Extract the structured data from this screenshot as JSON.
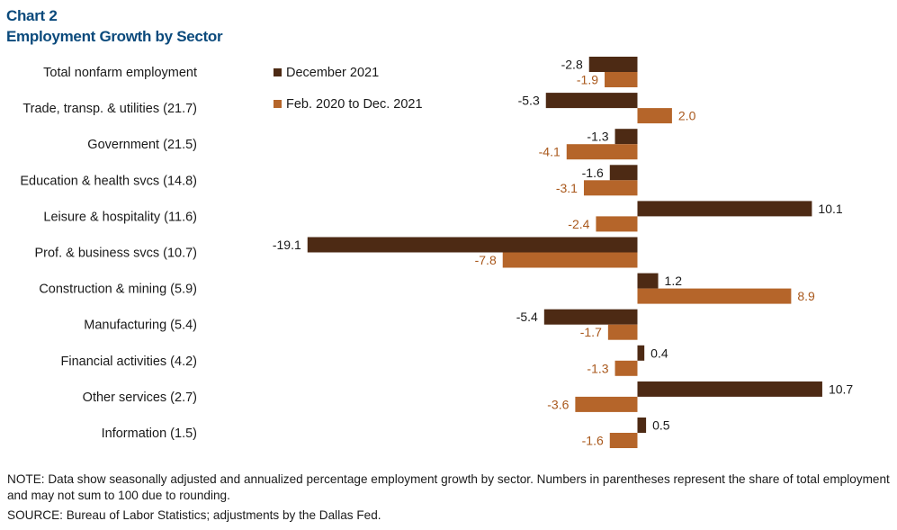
{
  "chart_label": "Chart 2",
  "title": "Employment Growth by Sector",
  "chart_data": {
    "type": "bar",
    "orientation": "horizontal",
    "categories": [
      "Total nonfarm employment",
      "Trade, transp. & utilities (21.7)",
      "Government (21.5)",
      "Education & health svcs (14.8)",
      "Leisure & hospitality (11.6)",
      "Prof. & business svcs (10.7)",
      "Construction & mining (5.9)",
      "Manufacturing (5.4)",
      "Financial activities (4.2)",
      "Other services (2.7)",
      "Information (1.5)"
    ],
    "series": [
      {
        "name": "December 2021",
        "color": "#4d2a14",
        "values": [
          -2.8,
          -5.3,
          -1.3,
          -1.6,
          10.1,
          -19.1,
          1.2,
          -5.4,
          0.4,
          10.7,
          0.5
        ]
      },
      {
        "name": "Feb. 2020 to Dec. 2021",
        "color": "#b5652a",
        "values": [
          -1.9,
          2.0,
          -4.1,
          -3.1,
          -2.4,
          -7.8,
          8.9,
          -1.7,
          -1.3,
          -3.6,
          -1.6
        ]
      }
    ],
    "label_colors": [
      "#1a1a1a",
      "#a9581c"
    ],
    "xlim": [
      -20,
      11
    ],
    "legend_position": "top-left of plot"
  },
  "note": "NOTE: Data show seasonally adjusted and annualized percentage employment growth by sector. Numbers in parentheses represent the share of total employment and may not sum to 100 due to rounding.",
  "source": "SOURCE: Bureau of Labor Statistics; adjustments by the Dallas Fed."
}
